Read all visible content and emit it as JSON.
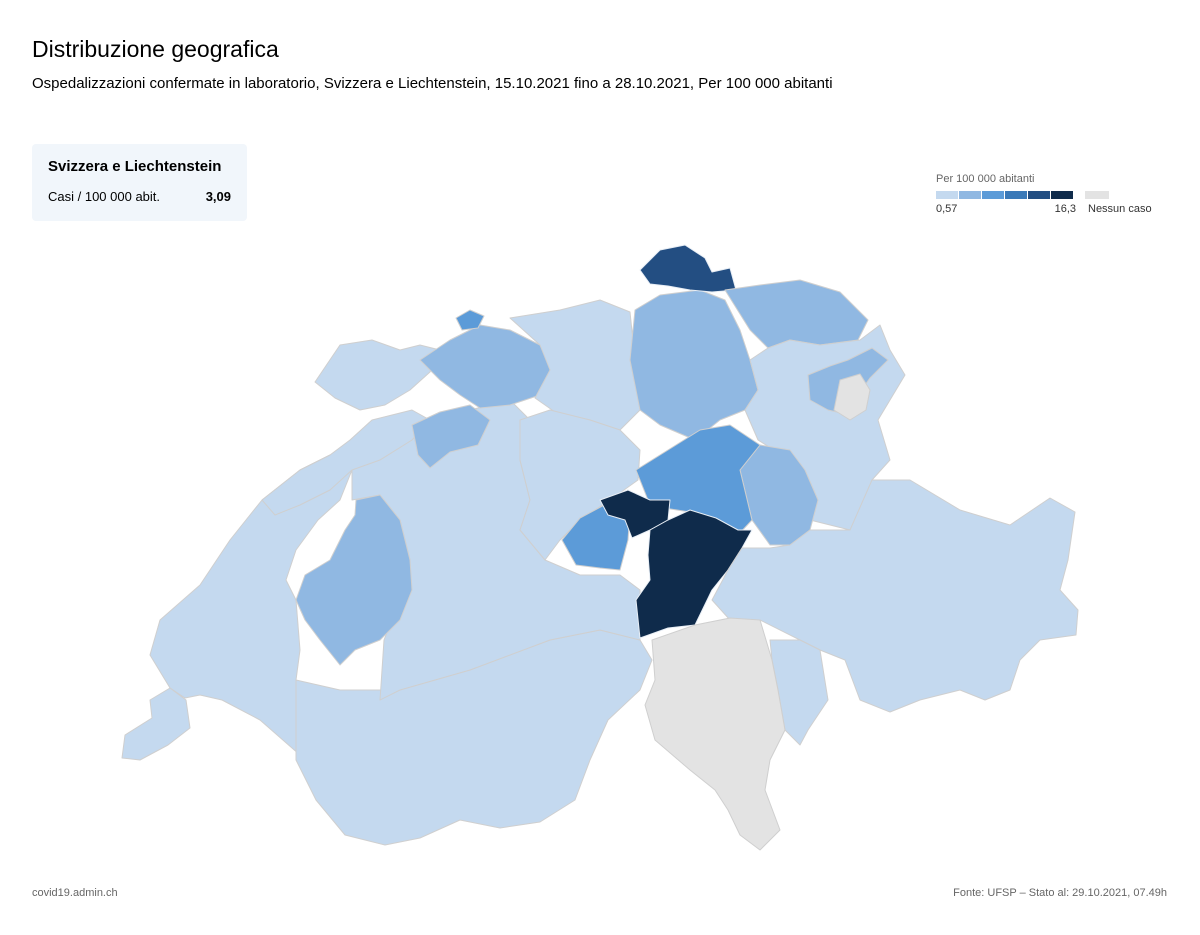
{
  "header": {
    "title": "Distribuzione geografica",
    "subtitle": "Ospedalizzazioni confermate in laboratorio, Svizzera e Liechtenstein, 15.10.2021 fino a 28.10.2021, Per 100 000 abitanti"
  },
  "summary": {
    "title": "Svizzera e Liechtenstein",
    "label": "Casi / 100 000 abit.",
    "value": "3,09"
  },
  "legend": {
    "title": "Per 100 000 abitanti",
    "min": "0,57",
    "max": "16,3",
    "no_case": "Nessun caso",
    "colors": [
      "#c4d9ef",
      "#90b8e2",
      "#5c9bd8",
      "#3a79b8",
      "#234e82",
      "#0f2b4b"
    ],
    "no_case_color": "#e3e3e3"
  },
  "map": {
    "border_color": "#cfcfcf",
    "regions": [
      {
        "name": "region-vaud-west",
        "cls": 0
      },
      {
        "name": "region-geneva",
        "cls": 0
      },
      {
        "name": "region-valais",
        "cls": 0
      },
      {
        "name": "region-bern",
        "cls": 0
      },
      {
        "name": "region-fribourg",
        "cls": 1
      },
      {
        "name": "region-neuchatel",
        "cls": 0
      },
      {
        "name": "region-jura",
        "cls": 0
      },
      {
        "name": "region-solothurn",
        "cls": 1
      },
      {
        "name": "region-basel",
        "cls": 1
      },
      {
        "name": "region-basel-city",
        "cls": 2
      },
      {
        "name": "region-aargau",
        "cls": 0
      },
      {
        "name": "region-lucerne",
        "cls": 0
      },
      {
        "name": "region-zurich",
        "cls": 1
      },
      {
        "name": "region-schaffhausen",
        "cls": 4
      },
      {
        "name": "region-thurgau",
        "cls": 1
      },
      {
        "name": "region-st-gallen",
        "cls": 0
      },
      {
        "name": "region-appenzell",
        "cls": 1
      },
      {
        "name": "region-appenzell-inner",
        "cls": -1
      },
      {
        "name": "region-glarus",
        "cls": 1
      },
      {
        "name": "region-schwyz",
        "cls": 2
      },
      {
        "name": "region-obwalden",
        "cls": 2
      },
      {
        "name": "region-nidwalden",
        "cls": 5
      },
      {
        "name": "region-uri",
        "cls": 5
      },
      {
        "name": "region-graubuenden",
        "cls": 0
      },
      {
        "name": "region-ticino",
        "cls": -1
      },
      {
        "name": "region-poschiavo",
        "cls": 0
      }
    ]
  },
  "footer": {
    "left": "covid19.admin.ch",
    "right": "Fonte: UFSP – Stato al: 29.10.2021, 07.49h"
  }
}
